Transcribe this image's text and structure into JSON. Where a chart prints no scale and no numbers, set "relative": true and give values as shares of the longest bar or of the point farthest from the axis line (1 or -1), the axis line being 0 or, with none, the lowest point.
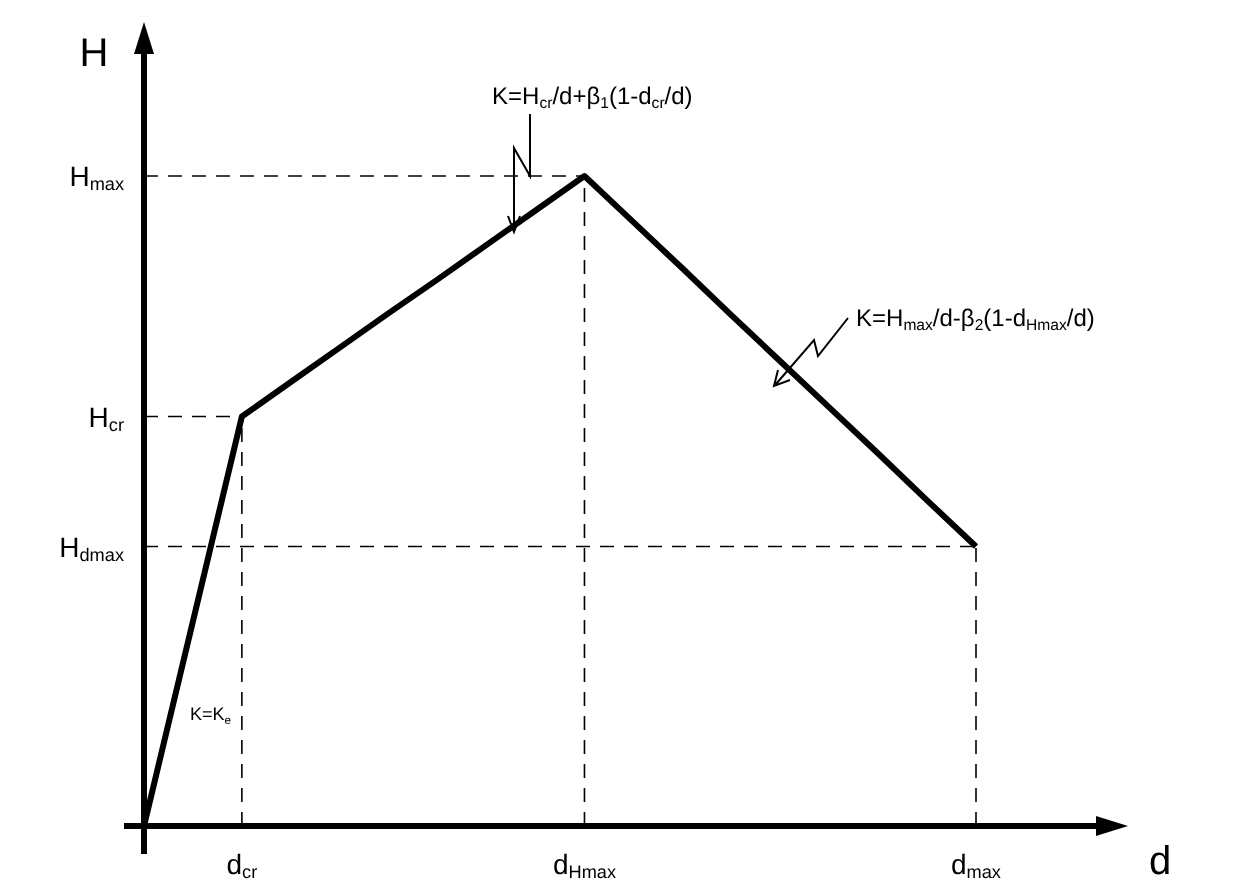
{
  "chart_data": {
    "type": "line",
    "relative": true,
    "xlabel": "d",
    "ylabel": "H",
    "categories": [
      null,
      null,
      "d$_{cr}$",
      null,
      null,
      null,
      null,
      null,
      null,
      "d$_{Hmax}$",
      null,
      null,
      null,
      null,
      null,
      null,
      null,
      "d$_{max}$"
    ],
    "series": [
      {
        "color": "#000000",
        "values": [
          0,
          0.315,
          0.63,
          0.683,
          0.736,
          0.789,
          0.841,
          0.894,
          0.947,
          1,
          0.929,
          0.858,
          0.786,
          0.715,
          0.644,
          0.573,
          0.501,
          0.43
        ]
      }
    ],
    "ref_lines": [
      {
        "axis": "y",
        "value": 1,
        "label": "H$_{max}$",
        "line_style": "dashed"
      },
      {
        "axis": "y",
        "value": 0.63,
        "label": "H$_{cr}$",
        "line_style": "dashed"
      },
      {
        "axis": "y",
        "value": 0.43,
        "label": "H$_{dmax}$",
        "line_style": "dashed"
      },
      {
        "axis": "x",
        "value": "d$_{cr}$",
        "line_style": "dashed"
      },
      {
        "axis": "x",
        "value": "d$_{Hmax}$",
        "line_style": "dashed"
      },
      {
        "axis": "x",
        "value": "d$_{max}$",
        "line_style": "dashed"
      }
    ],
    "annotations": [
      "K=H$_{cr}$/d+β$_{1}$(1-d$_{cr}$/d)",
      "K=H$_{max}$/d-β$_{2}$(1-d$_{Hmax}$/d)",
      "K=K$_{e}$"
    ],
    "line_style": "solid",
    "marker": "none"
  }
}
